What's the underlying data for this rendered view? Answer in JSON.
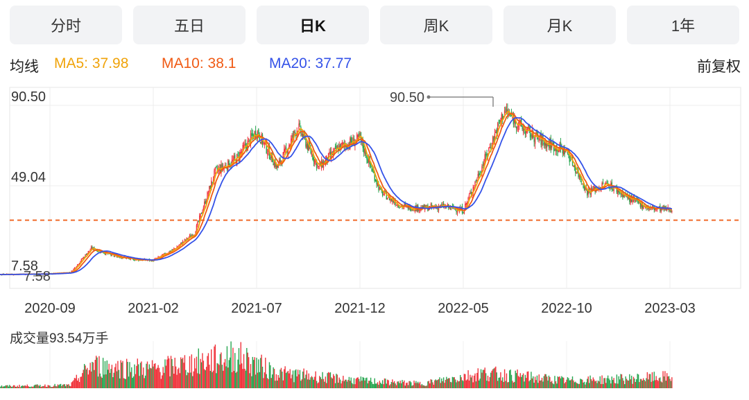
{
  "tabs": [
    {
      "label": "分时",
      "active": false
    },
    {
      "label": "五日",
      "active": false
    },
    {
      "label": "日K",
      "active": true
    },
    {
      "label": "周K",
      "active": false
    },
    {
      "label": "月K",
      "active": false
    },
    {
      "label": "1年",
      "active": false
    }
  ],
  "indicator": {
    "label": "均线",
    "ma5": "MA5: 37.98",
    "ma10": "MA10: 38.1",
    "ma20": "MA20: 37.77",
    "adjust": "前复权"
  },
  "colors": {
    "ma5": "#f0a30a",
    "ma10": "#f05a14",
    "ma20": "#3452e8",
    "up": "#f0343c",
    "down": "#27a650",
    "dash": "#f06a2a"
  },
  "chart_data": {
    "type": "candlestick",
    "y_tick_labels": [
      "90.50",
      "49.04",
      "7.58"
    ],
    "ylim": [
      7.58,
      90.5
    ],
    "x_tick_labels": [
      "2020-09",
      "2021-02",
      "2021-07",
      "2021-12",
      "2022-05",
      "2022-10",
      "2023-03"
    ],
    "max_marker": "90.50",
    "low_marker": "7.58",
    "reference_line": 34.2,
    "anchors": [
      [
        "2020-06",
        7.6
      ],
      [
        "2020-09",
        7.9
      ],
      [
        "2020-10",
        8.6
      ],
      [
        "2020-11",
        20.5
      ],
      [
        "2020-12",
        17.0
      ],
      [
        "2021-01",
        15.0
      ],
      [
        "2021-02",
        14.5
      ],
      [
        "2021-03",
        20.0
      ],
      [
        "2021-04",
        28.0
      ],
      [
        "2021-05",
        58.0
      ],
      [
        "2021-06",
        64.0
      ],
      [
        "2021-07",
        78.0
      ],
      [
        "2021-08",
        60.0
      ],
      [
        "2021-09",
        80.0
      ],
      [
        "2021-10",
        60.0
      ],
      [
        "2021-11",
        70.0
      ],
      [
        "2021-12",
        74.0
      ],
      [
        "2022-01",
        48.0
      ],
      [
        "2022-02",
        41.0
      ],
      [
        "2022-03",
        40.0
      ],
      [
        "2022-04",
        41.0
      ],
      [
        "2022-05",
        39.0
      ],
      [
        "2022-06",
        63.0
      ],
      [
        "2022-07",
        88.0
      ],
      [
        "2022-08",
        78.0
      ],
      [
        "2022-09",
        72.0
      ],
      [
        "2022-10",
        68.0
      ],
      [
        "2022-11",
        48.0
      ],
      [
        "2022-12",
        52.0
      ],
      [
        "2023-01",
        45.0
      ],
      [
        "2023-02",
        40.0
      ],
      [
        "2023-03",
        39.5
      ]
    ],
    "volume": {
      "label": "成交量93.54万手",
      "anchors": [
        [
          "2020-06",
          0.05
        ],
        [
          "2020-10",
          0.08
        ],
        [
          "2020-11",
          0.6
        ],
        [
          "2021-02",
          0.5
        ],
        [
          "2021-05",
          0.75
        ],
        [
          "2021-06",
          0.85
        ],
        [
          "2021-08",
          0.4
        ],
        [
          "2021-12",
          0.2
        ],
        [
          "2022-03",
          0.12
        ],
        [
          "2022-06",
          0.4
        ],
        [
          "2022-10",
          0.2
        ],
        [
          "2023-01",
          0.25
        ],
        [
          "2023-03",
          0.3
        ]
      ]
    }
  }
}
